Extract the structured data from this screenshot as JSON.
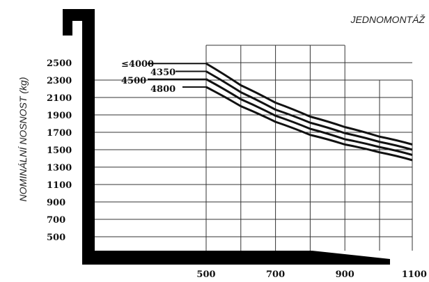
{
  "chart_data": {
    "type": "line",
    "title": "JEDNOMONTÁŽ",
    "ylabel": "NOMINÁLNÍ NOSNOST (kg)",
    "xlabel": "",
    "x_ticks": [
      "500",
      "700",
      "900",
      "1100"
    ],
    "y_ticks": [
      "2500",
      "2300",
      "2100",
      "1900",
      "1700",
      "1500",
      "1300",
      "1100",
      "900",
      "700",
      "500"
    ],
    "xlim": [
      500,
      1100
    ],
    "ylim": [
      500,
      2500
    ],
    "grid": true,
    "series": [
      {
        "name": "≤4000",
        "x": [
          500,
          600,
          700,
          800,
          900,
          1000,
          1100
        ],
        "values": [
          2490,
          2240,
          2040,
          1880,
          1760,
          1650,
          1560
        ]
      },
      {
        "name": "4350",
        "x": [
          500,
          600,
          700,
          800,
          900,
          1000,
          1100
        ],
        "values": [
          2400,
          2160,
          1960,
          1810,
          1690,
          1590,
          1500
        ]
      },
      {
        "name": "4500",
        "x": [
          500,
          600,
          700,
          800,
          900,
          1000,
          1100
        ],
        "values": [
          2310,
          2080,
          1890,
          1740,
          1620,
          1530,
          1440
        ]
      },
      {
        "name": "4800",
        "x": [
          500,
          600,
          700,
          800,
          900,
          1000,
          1100
        ],
        "values": [
          2220,
          2000,
          1820,
          1670,
          1560,
          1470,
          1380
        ]
      }
    ]
  }
}
